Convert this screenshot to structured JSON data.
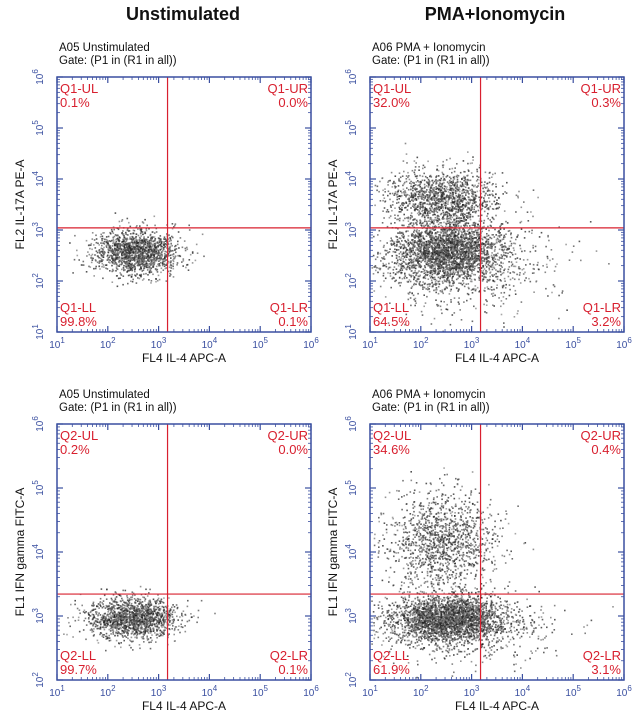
{
  "columns": [
    {
      "title": "Unstimulated"
    },
    {
      "title": "PMA+Ionomycin"
    }
  ],
  "colors": {
    "axis": "#3a4fa0",
    "quadrant_line": "#d8202f",
    "quadrant_label": "#d8202f",
    "dots": "#222222"
  },
  "chart_data": [
    {
      "type": "scatter",
      "sample": "A05 Unstimulated",
      "gate": "Gate: (P1 in (R1 in all))",
      "xlabel": "FL4 IL-4 APC-A",
      "ylabel": "FL2 IL-17A PE-A",
      "x_scale": "log",
      "y_scale": "log",
      "xlim": [
        10,
        1000000
      ],
      "ylim": [
        10,
        1000000
      ],
      "x_ticks": [
        10,
        100,
        1000,
        10000,
        100000,
        1000000
      ],
      "y_ticks": [
        10,
        100,
        1000,
        10000,
        100000,
        1000000
      ],
      "quadrant_gate": {
        "x": 1500,
        "y": 1100
      },
      "quadrants": [
        {
          "label": "Q1-UL",
          "percent": "0.1%",
          "position": "top-left"
        },
        {
          "label": "Q1-UR",
          "percent": "0.0%",
          "position": "top-right"
        },
        {
          "label": "Q1-LL",
          "percent": "99.8%",
          "position": "bottom-left"
        },
        {
          "label": "Q1-LR",
          "percent": "0.1%",
          "position": "bottom-right"
        }
      ],
      "clusters": [
        {
          "x_center": 350,
          "y_center": 380,
          "spread_x": 0.42,
          "spread_y": 0.22,
          "n": 1500
        }
      ]
    },
    {
      "type": "scatter",
      "sample": "A06 PMA + Ionomycin",
      "gate": "Gate: (P1 in (R1 in all))",
      "xlabel": "FL4 IL-4 APC-A",
      "ylabel": "FL2 IL-17A PE-A",
      "x_scale": "log",
      "y_scale": "log",
      "xlim": [
        10,
        1000000
      ],
      "ylim": [
        10,
        1000000
      ],
      "x_ticks": [
        10,
        100,
        1000,
        10000,
        100000,
        1000000
      ],
      "y_ticks": [
        10,
        100,
        1000,
        10000,
        100000,
        1000000
      ],
      "quadrant_gate": {
        "x": 1500,
        "y": 1100
      },
      "quadrants": [
        {
          "label": "Q1-UL",
          "percent": "32.0%",
          "position": "top-left"
        },
        {
          "label": "Q1-UR",
          "percent": "0.3%",
          "position": "top-right"
        },
        {
          "label": "Q1-LL",
          "percent": "64.5%",
          "position": "bottom-left"
        },
        {
          "label": "Q1-LR",
          "percent": "3.2%",
          "position": "bottom-right"
        }
      ],
      "clusters": [
        {
          "x_center": 330,
          "y_center": 400,
          "spread_x": 0.55,
          "spread_y": 0.3,
          "n": 2400
        },
        {
          "x_center": 280,
          "y_center": 4500,
          "spread_x": 0.55,
          "spread_y": 0.28,
          "n": 1300
        },
        {
          "x_center": 600,
          "y_center": 200,
          "spread_x": 0.9,
          "spread_y": 0.45,
          "n": 700
        }
      ]
    },
    {
      "type": "scatter",
      "sample": "A05 Unstimulated",
      "gate": "Gate: (P1 in (R1 in all))",
      "xlabel": "FL4 IL-4 APC-A",
      "ylabel": "FL1 IFN gamma FITC-A",
      "x_scale": "log",
      "y_scale": "log",
      "xlim": [
        10,
        1000000
      ],
      "ylim": [
        100,
        1000000
      ],
      "x_ticks": [
        10,
        100,
        1000,
        10000,
        100000,
        1000000
      ],
      "y_ticks": [
        100,
        1000,
        10000,
        100000,
        1000000
      ],
      "quadrant_gate": {
        "x": 1500,
        "y": 2200
      },
      "quadrants": [
        {
          "label": "Q2-UL",
          "percent": "0.2%",
          "position": "top-left"
        },
        {
          "label": "Q2-UR",
          "percent": "0.0%",
          "position": "top-right"
        },
        {
          "label": "Q2-LL",
          "percent": "99.7%",
          "position": "bottom-left"
        },
        {
          "label": "Q2-LR",
          "percent": "0.1%",
          "position": "bottom-right"
        }
      ],
      "clusters": [
        {
          "x_center": 300,
          "y_center": 950,
          "spread_x": 0.42,
          "spread_y": 0.16,
          "n": 1500
        }
      ]
    },
    {
      "type": "scatter",
      "sample": "A06 PMA + Ionomycin",
      "gate": "Gate: (P1 in (R1 in all))",
      "xlabel": "FL4 IL-4 APC-A",
      "ylabel": "FL1 IFN gamma FITC-A",
      "x_scale": "log",
      "y_scale": "log",
      "xlim": [
        10,
        1000000
      ],
      "ylim": [
        100,
        1000000
      ],
      "x_ticks": [
        10,
        100,
        1000,
        10000,
        100000,
        1000000
      ],
      "y_ticks": [
        100,
        1000,
        10000,
        100000,
        1000000
      ],
      "quadrant_gate": {
        "x": 1500,
        "y": 2200
      },
      "quadrants": [
        {
          "label": "Q2-UL",
          "percent": "34.6%",
          "position": "top-left"
        },
        {
          "label": "Q2-UR",
          "percent": "0.4%",
          "position": "top-right"
        },
        {
          "label": "Q2-LL",
          "percent": "61.9%",
          "position": "bottom-left"
        },
        {
          "label": "Q2-LR",
          "percent": "3.1%",
          "position": "bottom-right"
        }
      ],
      "clusters": [
        {
          "x_center": 330,
          "y_center": 950,
          "spread_x": 0.55,
          "spread_y": 0.18,
          "n": 2400
        },
        {
          "x_center": 280,
          "y_center": 15000,
          "spread_x": 0.55,
          "spread_y": 0.4,
          "n": 1300
        },
        {
          "x_center": 700,
          "y_center": 600,
          "spread_x": 0.9,
          "spread_y": 0.25,
          "n": 600
        }
      ]
    }
  ]
}
